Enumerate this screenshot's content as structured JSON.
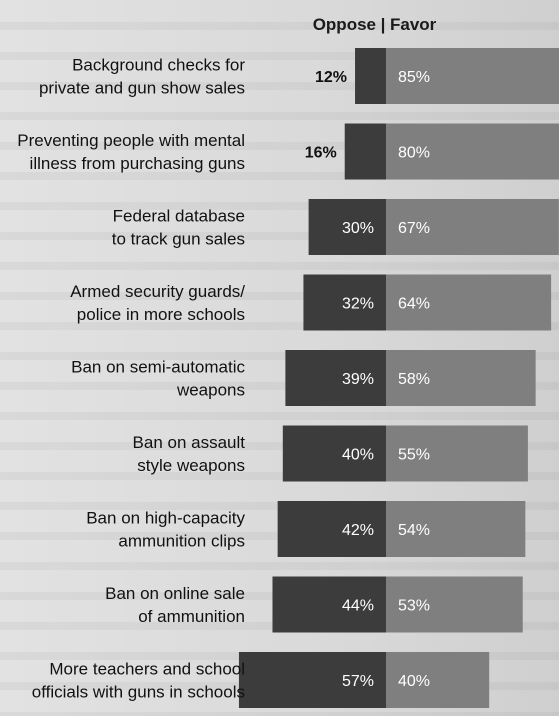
{
  "header": {
    "oppose": "Oppose",
    "separator": "|",
    "favor": "Favor"
  },
  "colors": {
    "oppose": "#3c3c3c",
    "favor": "#7f7f7f",
    "background": "#dcdcdc"
  },
  "chart_data": {
    "type": "bar",
    "orientation": "horizontal-diverging",
    "categories": [
      [
        "Background checks for",
        "private and gun show sales"
      ],
      [
        "Preventing people with mental",
        "illness from purchasing guns"
      ],
      [
        "Federal database",
        "to track gun sales"
      ],
      [
        "Armed security guards/",
        "police in more schools"
      ],
      [
        "Ban on semi-automatic",
        "weapons"
      ],
      [
        "Ban on assault",
        "style weapons"
      ],
      [
        "Ban on high-capacity",
        "ammunition clips"
      ],
      [
        "Ban on online sale",
        "of ammunition"
      ],
      [
        "More teachers and school",
        "officials with guns in schools"
      ]
    ],
    "series": [
      {
        "name": "Oppose",
        "values": [
          12,
          16,
          30,
          32,
          39,
          40,
          42,
          44,
          57
        ],
        "labels": [
          "12%",
          "16%",
          "30%",
          "32%",
          "39%",
          "40%",
          "42%",
          "44%",
          "57%"
        ]
      },
      {
        "name": "Favor",
        "values": [
          85,
          80,
          67,
          64,
          58,
          55,
          54,
          53,
          40
        ],
        "labels": [
          "85%",
          "80%",
          "67%",
          "64%",
          "58%",
          "55%",
          "54%",
          "53%",
          "40%"
        ]
      }
    ],
    "unit": "%"
  }
}
